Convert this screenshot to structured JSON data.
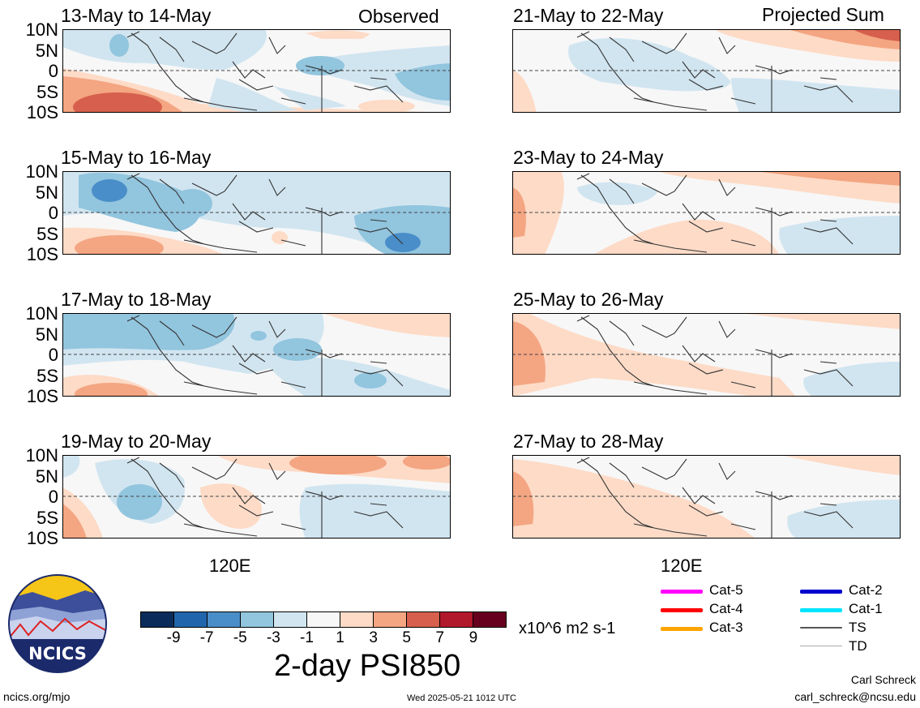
{
  "tag_observed": "Observed",
  "tag_projected": "Projected Sum",
  "lat_labels": [
    "10N",
    "5N",
    "0",
    "5S",
    "10S"
  ],
  "lon_label": "120E",
  "panels": [
    {
      "title": "13-May to 14-May"
    },
    {
      "title": "15-May to 16-May"
    },
    {
      "title": "17-May to 18-May"
    },
    {
      "title": "19-May to 20-May"
    },
    {
      "title": "21-May to 22-May"
    },
    {
      "title": "23-May to 24-May"
    },
    {
      "title": "25-May to 26-May"
    },
    {
      "title": "27-May to 28-May"
    }
  ],
  "colorbar": {
    "colors": [
      "#0b2c5a",
      "#2166ac",
      "#4a8ec9",
      "#92c5de",
      "#d1e5f0",
      "#f7f7f7",
      "#fddbc7",
      "#f4a582",
      "#d6604d",
      "#b2182b",
      "#67001f"
    ],
    "ticks": [
      "-9",
      "-7",
      "-5",
      "-3",
      "-1",
      "1",
      "3",
      "5",
      "7",
      "9"
    ],
    "units": "x10^6 m2 s-1",
    "title": "2-day PSI850"
  },
  "legend": [
    {
      "label": "Cat-5",
      "color": "#ff00ff"
    },
    {
      "label": "Cat-4",
      "color": "#ff0000"
    },
    {
      "label": "Cat-3",
      "color": "#ffa500"
    },
    {
      "label": "Cat-2",
      "color": "#0000cd"
    },
    {
      "label": "Cat-1",
      "color": "#00e5ff"
    },
    {
      "label": "TS",
      "color": "#555555"
    },
    {
      "label": "TD",
      "color": "#aaaaaa"
    }
  ],
  "logo_text": "NCICS",
  "site": "ncics.org/mjo",
  "timestamp": "Wed 2025-05-21 1012 UTC",
  "author": "Carl Schreck",
  "email": "carl_schreck@ncsu.edu"
}
